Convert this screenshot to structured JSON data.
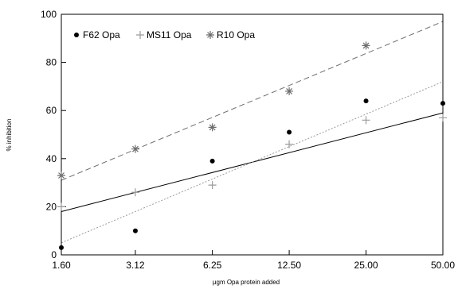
{
  "chart_data": {
    "type": "scatter",
    "title": "",
    "xlabel": "μgm Opa protein added",
    "ylabel": "% inhibition",
    "x_scale": "log2",
    "x_ticks": [
      "1.60",
      "3.12",
      "6.25",
      "12.50",
      "25.00",
      "50.00"
    ],
    "y_ticks": [
      "0",
      "20",
      "40",
      "60",
      "80",
      "100"
    ],
    "ylim": [
      0,
      100
    ],
    "grid": false,
    "legend_position": "top-left",
    "series": [
      {
        "name": "F62 Opa",
        "marker": "filled-circle",
        "line_style": "solid",
        "color": "#000000",
        "x": [
          1.6,
          3.12,
          6.25,
          12.5,
          25.0,
          50.0
        ],
        "y": [
          3,
          10,
          39,
          51,
          64,
          63
        ],
        "trend": [
          [
            1.6,
            18
          ],
          [
            50.0,
            59
          ]
        ]
      },
      {
        "name": "MS11 Opa",
        "marker": "plus",
        "line_style": "dotted",
        "color": "#9a9a9a",
        "x": [
          1.6,
          3.12,
          6.25,
          12.5,
          25.0,
          50.0
        ],
        "y": [
          20,
          26,
          29,
          46,
          56,
          57
        ],
        "trend": [
          [
            1.6,
            5
          ],
          [
            50.0,
            72
          ]
        ]
      },
      {
        "name": "R10 Opa",
        "marker": "star",
        "line_style": "dashed",
        "color": "#6e6e6e",
        "x": [
          1.6,
          3.12,
          6.25,
          12.5,
          25.0
        ],
        "y": [
          33,
          44,
          53,
          68,
          87
        ],
        "trend": [
          [
            1.6,
            31
          ],
          [
            50.0,
            97
          ]
        ]
      }
    ]
  }
}
